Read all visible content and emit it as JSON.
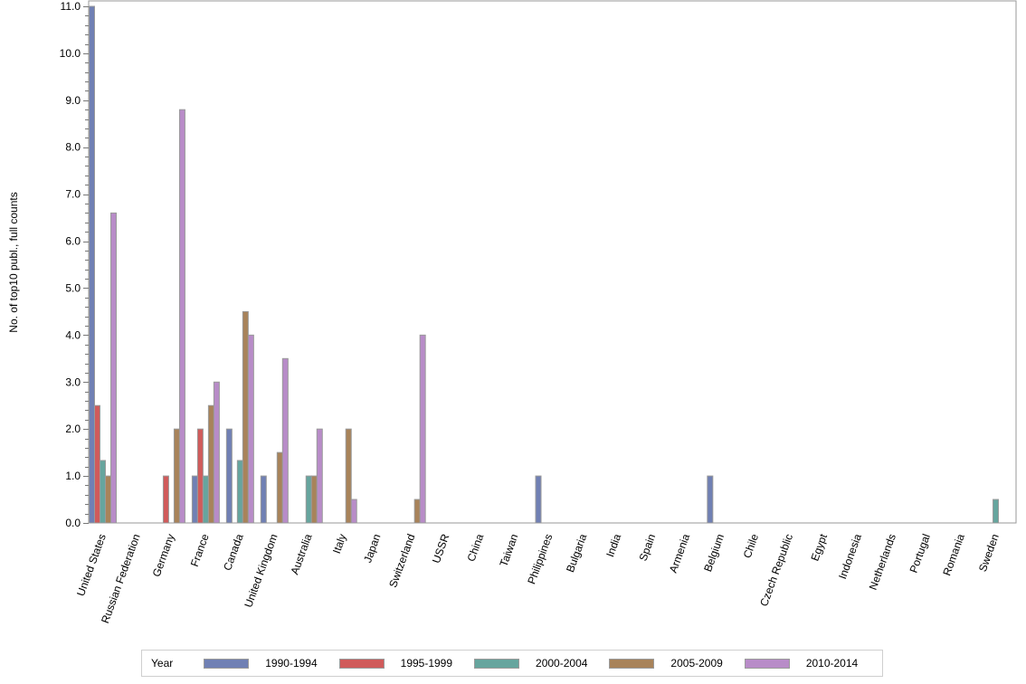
{
  "chart_data": {
    "type": "bar",
    "title": "",
    "xlabel": "",
    "ylabel": "No. of top10 publ., full counts",
    "ylim": [
      0,
      11
    ],
    "yticks": [
      "0.0",
      "1.0",
      "2.0",
      "3.0",
      "4.0",
      "5.0",
      "6.0",
      "7.0",
      "8.0",
      "9.0",
      "10.0",
      "11.0"
    ],
    "grid": false,
    "legend_position": "bottom",
    "legend_title": "Year",
    "categories": [
      "United States",
      "Russian Federation",
      "Germany",
      "France",
      "Canada",
      "United Kingdom",
      "Australia",
      "Italy",
      "Japan",
      "Switzerland",
      "USSR",
      "China",
      "Taiwan",
      "Philippines",
      "Bulgaria",
      "India",
      "Spain",
      "Armenia",
      "Belgium",
      "Chile",
      "Czech Republic",
      "Egypt",
      "Indonesia",
      "Netherlands",
      "Portugal",
      "Romania",
      "Sweden"
    ],
    "series": [
      {
        "name": "1990-1994",
        "color": "#7080b4",
        "values": [
          11.0,
          0,
          0,
          1.0,
          2.0,
          1.0,
          0,
          0,
          0,
          0,
          0,
          0,
          0,
          1.0,
          0,
          0,
          0,
          0,
          1.0,
          0,
          0,
          0,
          0,
          0,
          0,
          0,
          0
        ]
      },
      {
        "name": "1995-1999",
        "color": "#d05b5b",
        "values": [
          2.5,
          0,
          1.0,
          2.0,
          0,
          0,
          0,
          0,
          0,
          0,
          0,
          0,
          0,
          0,
          0,
          0,
          0,
          0,
          0,
          0,
          0,
          0,
          0,
          0,
          0,
          0,
          0
        ]
      },
      {
        "name": "2000-2004",
        "color": "#66a59e",
        "values": [
          1.33,
          0,
          0,
          1.0,
          1.33,
          0,
          1.0,
          0,
          0,
          0,
          0,
          0,
          0,
          0,
          0,
          0,
          0,
          0,
          0,
          0,
          0,
          0,
          0,
          0,
          0,
          0,
          0.5
        ]
      },
      {
        "name": "2005-2009",
        "color": "#a8835a",
        "values": [
          1.0,
          0,
          2.0,
          2.5,
          4.5,
          1.5,
          1.0,
          2.0,
          0,
          0.5,
          0,
          0,
          0,
          0,
          0,
          0,
          0,
          0,
          0,
          0,
          0,
          0,
          0,
          0,
          0,
          0,
          0
        ]
      },
      {
        "name": "2010-2014",
        "color": "#b88cc8",
        "values": [
          6.6,
          0,
          8.8,
          3.0,
          4.0,
          3.5,
          2.0,
          0.5,
          0,
          4.0,
          0,
          0,
          0,
          0,
          0,
          0,
          0,
          0,
          0,
          0,
          0,
          0,
          0,
          0,
          0,
          0,
          0
        ]
      }
    ]
  },
  "legend": {
    "title": "Year",
    "items": [
      {
        "label": "1990-1994",
        "color": "#7080b4"
      },
      {
        "label": "1995-1999",
        "color": "#d05b5b"
      },
      {
        "label": "2000-2004",
        "color": "#66a59e"
      },
      {
        "label": "2005-2009",
        "color": "#a8835a"
      },
      {
        "label": "2010-2014",
        "color": "#b88cc8"
      }
    ]
  }
}
